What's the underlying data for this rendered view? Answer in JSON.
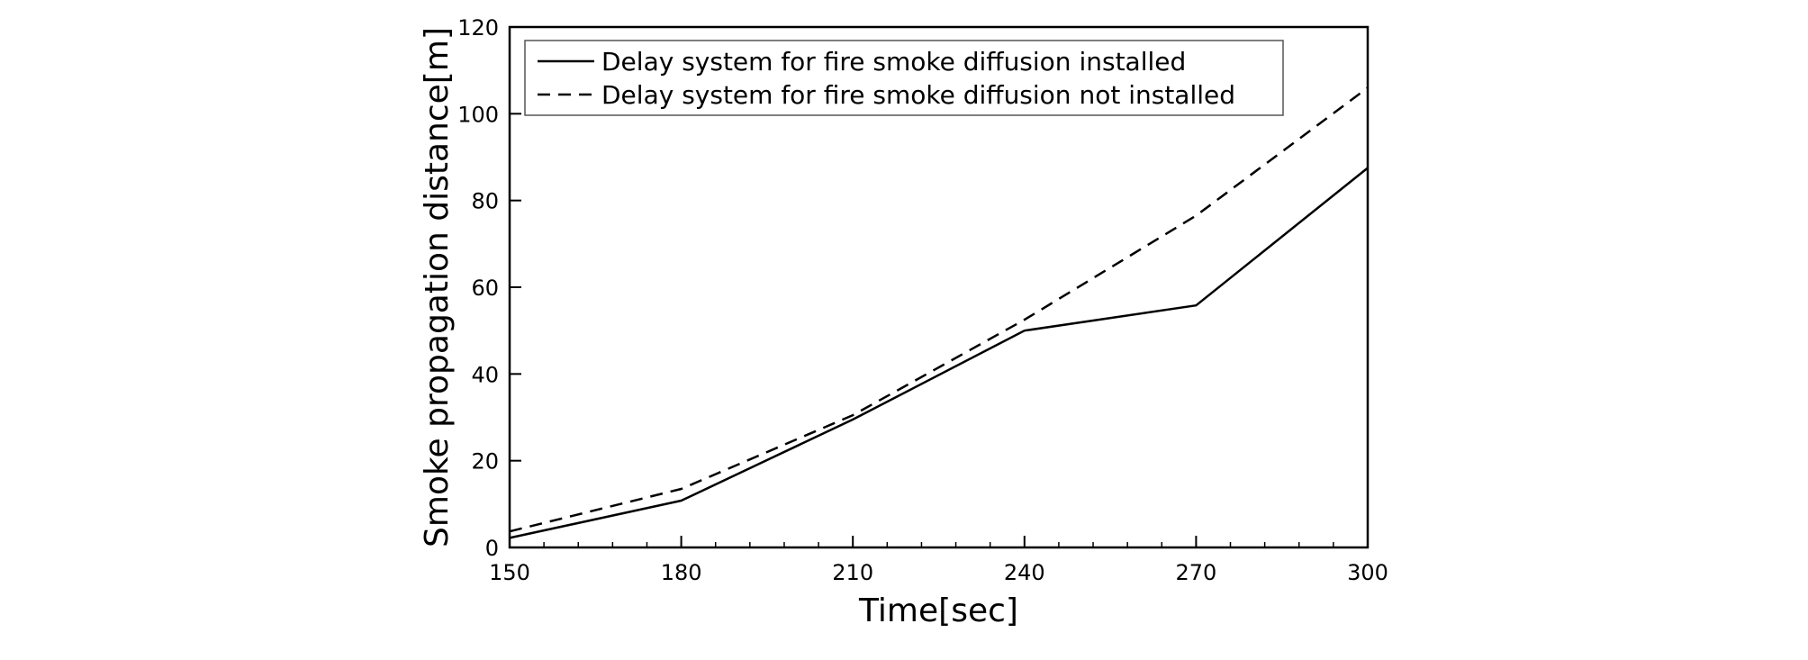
{
  "chart_data": {
    "type": "line",
    "xlabel": "Time[sec]",
    "ylabel": "Smoke propagation distance[m]",
    "xlim": [
      150,
      300
    ],
    "ylim": [
      0,
      120
    ],
    "xticks": [
      150,
      180,
      210,
      240,
      270,
      300
    ],
    "yticks": [
      0,
      20,
      40,
      60,
      80,
      100,
      120
    ],
    "x_minor_step": 6,
    "grid": false,
    "legend_position": "top-left",
    "x": [
      150,
      180,
      210,
      240,
      270,
      300
    ],
    "series": [
      {
        "name": "Delay system for fire smoke diffusion installed",
        "style": "solid",
        "values": [
          2.2,
          10.8,
          29.5,
          50,
          55.8,
          87.5
        ]
      },
      {
        "name": "Delay system for fire smoke diffusion not installed",
        "style": "dashed",
        "values": [
          3.7,
          13.5,
          30.5,
          52.5,
          76.5,
          106
        ]
      }
    ],
    "colors": {
      "line": "#000000",
      "background": "#ffffff"
    }
  }
}
